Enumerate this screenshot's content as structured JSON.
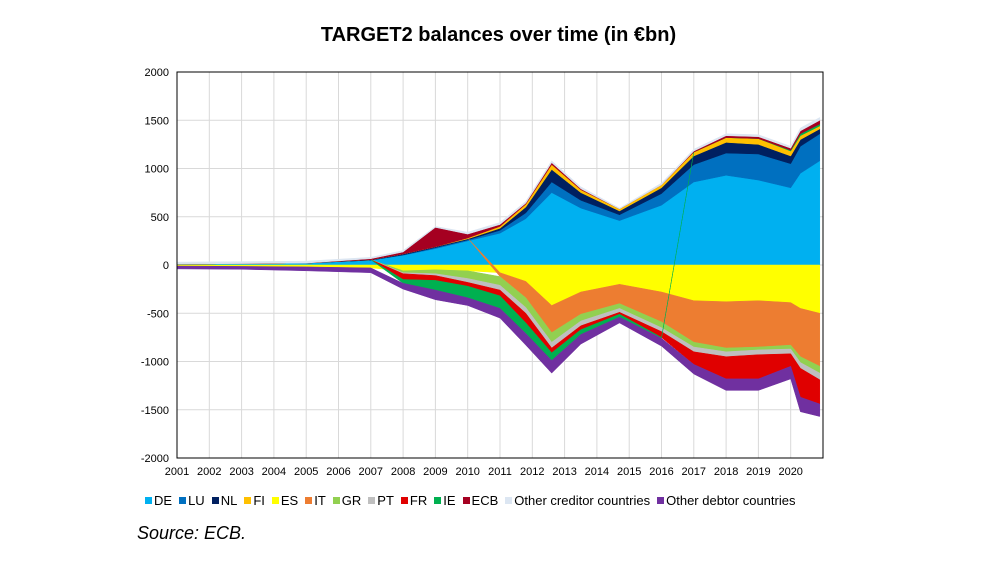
{
  "chart_data": {
    "type": "area",
    "stacked": true,
    "title": "TARGET2 balances over time (in €bn)",
    "xlabel": "",
    "ylabel": "",
    "ylim": [
      -2000,
      2000
    ],
    "yticks": [
      2000,
      1500,
      1000,
      500,
      0,
      -500,
      -1000,
      -1500,
      -2000
    ],
    "xlim": [
      2001,
      2021
    ],
    "xticks": [
      "2001",
      "2002",
      "2003",
      "2004",
      "2005",
      "2006",
      "2007",
      "2008",
      "2009",
      "2010",
      "2011",
      "2012",
      "2013",
      "2014",
      "2015",
      "2016",
      "2017",
      "2018",
      "2019",
      "2020"
    ],
    "grid": true,
    "legend_position": "bottom",
    "x": [
      2001,
      2003,
      2005,
      2007,
      2008,
      2009,
      2010,
      2011,
      2011.8,
      2012.6,
      2013.5,
      2014.7,
      2016,
      2017,
      2018,
      2019,
      2020,
      2020.3,
      2020.9
    ],
    "series": [
      {
        "name": "DE",
        "color": "#00b0f0",
        "values": [
          10,
          15,
          20,
          50,
          100,
          170,
          250,
          330,
          480,
          750,
          590,
          460,
          620,
          860,
          930,
          880,
          800,
          950,
          1080
        ]
      },
      {
        "name": "LU",
        "color": "#0070c0",
        "values": [
          0,
          0,
          0,
          0,
          5,
          10,
          10,
          30,
          60,
          110,
          80,
          60,
          120,
          180,
          230,
          270,
          250,
          280,
          280
        ]
      },
      {
        "name": "NL",
        "color": "#002060",
        "values": [
          0,
          0,
          0,
          5,
          10,
          10,
          10,
          20,
          60,
          130,
          80,
          40,
          60,
          90,
          110,
          100,
          80,
          70,
          50
        ]
      },
      {
        "name": "FI",
        "color": "#ffc000",
        "values": [
          0,
          0,
          0,
          0,
          0,
          0,
          10,
          20,
          30,
          50,
          30,
          20,
          30,
          40,
          50,
          60,
          50,
          40,
          30
        ]
      },
      {
        "name": "ES",
        "color": "#ffff00",
        "values": [
          -10,
          -15,
          -20,
          -30,
          -60,
          -50,
          -60,
          -80,
          -170,
          -420,
          -280,
          -200,
          -280,
          -370,
          -380,
          -370,
          -390,
          -450,
          -500
        ]
      },
      {
        "name": "IT",
        "color": "#ed7d31",
        "values": [
          0,
          0,
          0,
          0,
          0,
          0,
          0,
          -40,
          -170,
          -280,
          -230,
          -200,
          -310,
          -430,
          -480,
          -480,
          -440,
          -500,
          -550
        ]
      },
      {
        "name": "GR",
        "color": "#92d050",
        "values": [
          0,
          0,
          0,
          0,
          -20,
          -40,
          -80,
          -90,
          -100,
          -100,
          -70,
          -50,
          -60,
          -50,
          -40,
          -30,
          -40,
          -60,
          -70
        ]
      },
      {
        "name": "PT",
        "color": "#bfbfbf",
        "values": [
          0,
          0,
          0,
          0,
          -10,
          -20,
          -40,
          -50,
          -60,
          -60,
          -50,
          -40,
          -40,
          -50,
          -50,
          -50,
          -50,
          -60,
          -70
        ]
      },
      {
        "name": "FR",
        "color": "#e00000",
        "values": [
          0,
          0,
          0,
          0,
          -60,
          -50,
          -40,
          -60,
          -100,
          -50,
          -40,
          -20,
          -60,
          -130,
          -230,
          -250,
          -130,
          -300,
          -250
        ]
      },
      {
        "name": "IE",
        "color": "#00b050",
        "values": [
          0,
          0,
          0,
          0,
          -40,
          -100,
          -120,
          -130,
          -110,
          -80,
          -50,
          -30,
          -10,
          0,
          0,
          0,
          10,
          20,
          20
        ]
      },
      {
        "name": "ECB",
        "color": "#a50021",
        "values": [
          0,
          0,
          0,
          10,
          20,
          200,
          40,
          20,
          10,
          20,
          10,
          0,
          0,
          10,
          20,
          20,
          20,
          30,
          40
        ]
      },
      {
        "name": "Other creditor countries",
        "color": "#dce6f2",
        "values": [
          20,
          20,
          20,
          15,
          15,
          10,
          20,
          20,
          20,
          20,
          20,
          10,
          20,
          20,
          20,
          20,
          20,
          30,
          30
        ]
      },
      {
        "name": "Other debtor countries",
        "color": "#7030a0",
        "values": [
          -30,
          -30,
          -40,
          -50,
          -60,
          -100,
          -80,
          -100,
          -120,
          -130,
          -100,
          -60,
          -80,
          -100,
          -120,
          -120,
          -130,
          -150,
          -130
        ]
      }
    ]
  },
  "source": "Source: ECB."
}
